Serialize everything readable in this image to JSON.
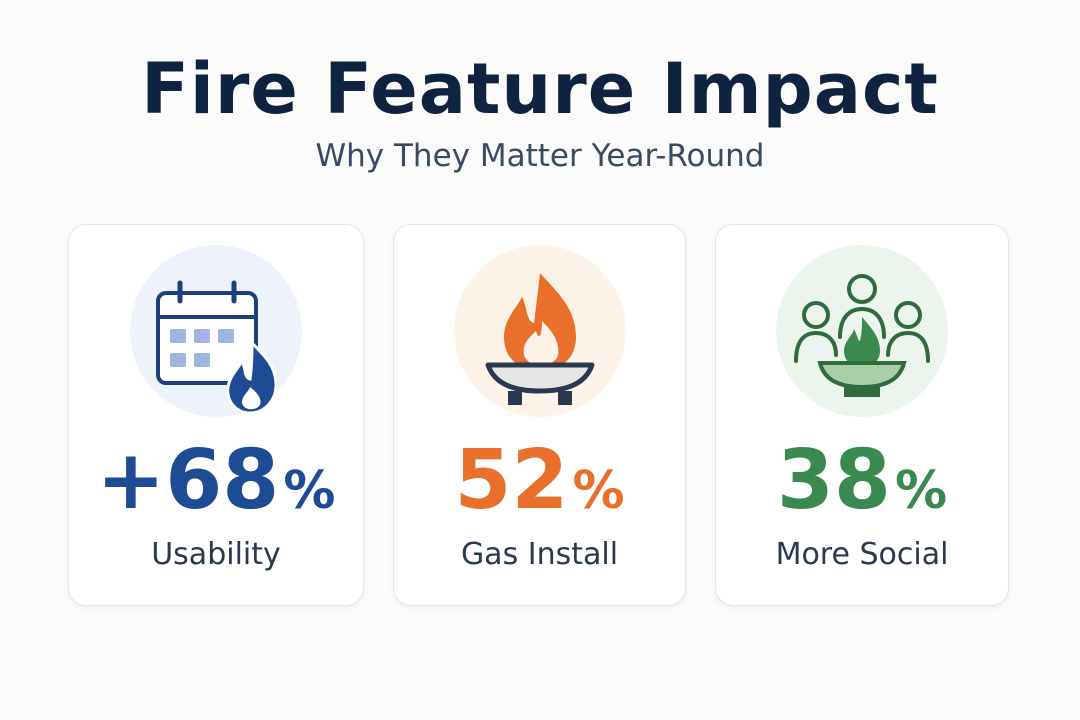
{
  "header": {
    "title": "Fire Feature Impact",
    "subtitle": "Why They Matter Year-Round"
  },
  "cards": [
    {
      "value": "+68",
      "unit": "%",
      "label": "Usability",
      "color": "#1d4b94"
    },
    {
      "value": "52",
      "unit": "%",
      "label": "Gas Install",
      "color": "#e8702a"
    },
    {
      "value": "38",
      "unit": "%",
      "label": "More Social",
      "color": "#3a8a4f"
    }
  ]
}
